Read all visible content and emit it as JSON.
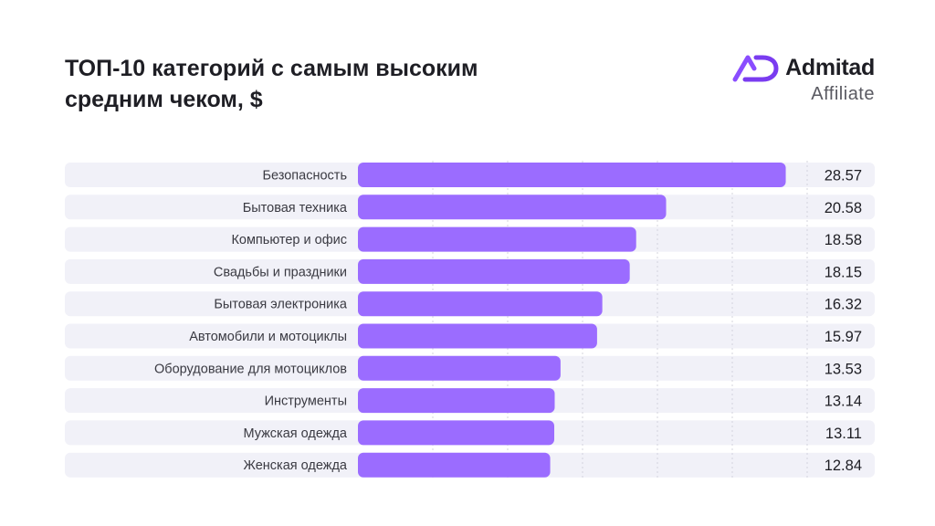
{
  "header": {
    "title_line1": "ТОП-10 категорий с самым высоким",
    "title_line2": "средним чеком, $"
  },
  "logo": {
    "name": "Admitad",
    "subtitle": "Affiliate",
    "icon": "admitad-ad-logo-icon",
    "brand_color": "#8a4dff"
  },
  "colors": {
    "bar": "#9b6cff",
    "row_bg": "#f1f1f8",
    "grid": "#d4d4de",
    "label": "#3a3a42",
    "value": "#1e1e24"
  },
  "chart_data": {
    "type": "bar",
    "orientation": "horizontal",
    "title": "ТОП-10 категорий с самым высоким средним чеком, $",
    "categories": [
      "Безопасность",
      "Бытовая техника",
      "Компьютер и офис",
      "Свадьбы и праздники",
      "Бытовая электроника",
      "Автомобили и мотоциклы",
      "Оборудование для мотоциклов",
      "Инструменты",
      "Мужская одежда",
      "Женская одежда"
    ],
    "values": [
      28.57,
      20.58,
      18.58,
      18.15,
      16.32,
      15.97,
      13.53,
      13.14,
      13.11,
      12.84
    ],
    "value_labels": [
      "28.57",
      "20.58",
      "18.58",
      "18.15",
      "16.32",
      "15.97",
      "13.53",
      "13.14",
      "13.11",
      "12.84"
    ],
    "xlim": [
      0,
      30
    ],
    "grid": true,
    "legend": "none"
  }
}
